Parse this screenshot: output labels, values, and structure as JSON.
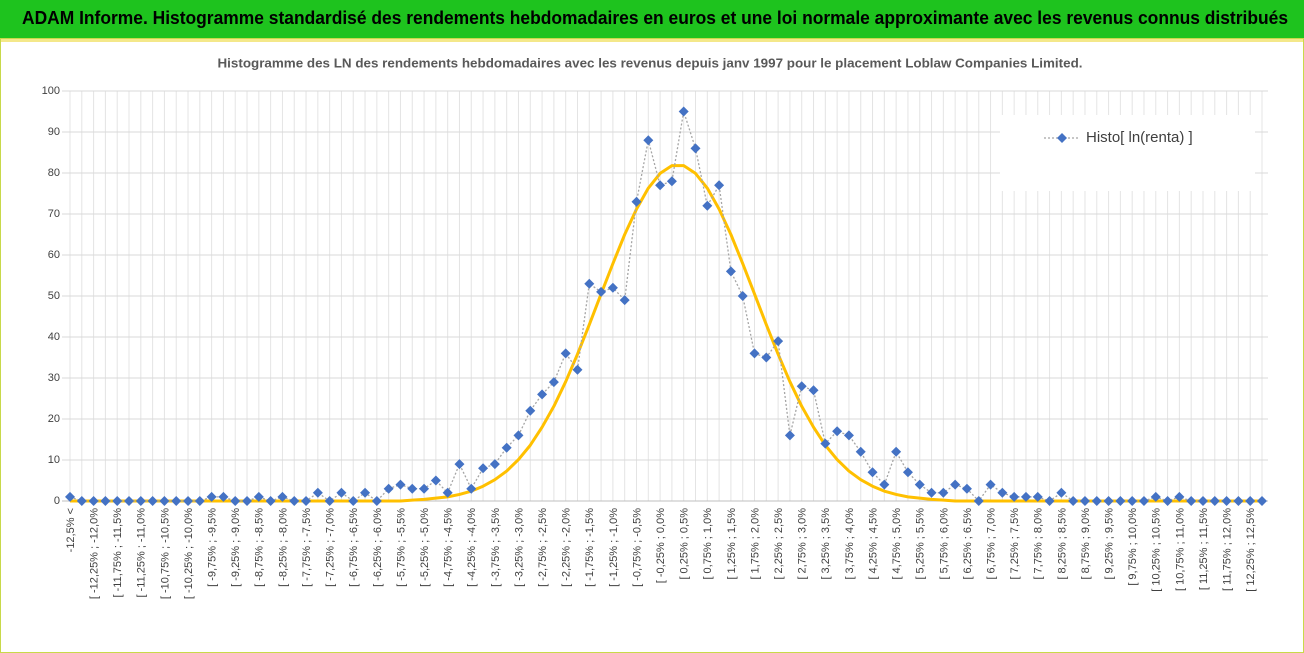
{
  "chart_data": {
    "type": "line",
    "header": "ADAM Informe. Histogramme standardisé des rendements hebdomadaires en euros et une loi normale approximante avec les revenus connus distribués",
    "title": "Histogramme des LN des rendements hebdomadaires avec les revenus depuis janv 1997 pour le placement Loblaw Companies Limited.",
    "categories": [
      "-12,5% <",
      null,
      "[ -12,25% ; -12,0%",
      null,
      "[ -11,75% ; -11,5%",
      null,
      "[ -11,25% ; -11,0%",
      null,
      "[ -10,75% ; -10,5%",
      null,
      "[ -10,25% ; -10,0%",
      null,
      "[ -9,75% ; -9,5%",
      null,
      "[ -9,25% ; -9,0%",
      null,
      "[ -8,75% ; -8,5%",
      null,
      "[ -8,25% ; -8,0%",
      null,
      "[ -7,75% ; -7,5%",
      null,
      "[ -7,25% ; -7,0%",
      null,
      "[ -6,75% ; -6,5%",
      null,
      "[ -6,25% ; -6,0%",
      null,
      "[ -5,75% ; -5,5%",
      null,
      "[ -5,25% ; -5,0%",
      null,
      "[ -4,75% ; -4,5%",
      null,
      "[ -4,25% ; -4,0%",
      null,
      "[ -3,75% ; -3,5%",
      null,
      "[ -3,25% ; -3,0%",
      null,
      "[ -2,75% ; -2,5%",
      null,
      "[ -2,25% ; -2,0%",
      null,
      "[ -1,75% ; -1,5%",
      null,
      "[ -1,25% ; -1,0%",
      null,
      "[ -0,75% ; -0,5%",
      null,
      "[ -0,25% ; 0,0%",
      null,
      "[ 0,25% ; 0,5%",
      null,
      "[ 0,75% ; 1,0%",
      null,
      "[ 1,25% ; 1,5%",
      null,
      "[ 1,75% ; 2,0%",
      null,
      "[ 2,25% ; 2,5%",
      null,
      "[ 2,75% ; 3,0%",
      null,
      "[ 3,25% ; 3,5%",
      null,
      "[ 3,75% ; 4,0%",
      null,
      "[ 4,25% ; 4,5%",
      null,
      "[ 4,75% ; 5,0%",
      null,
      "[ 5,25% ; 5,5%",
      null,
      "[ 5,75% ; 6,0%",
      null,
      "[ 6,25% ; 6,5%",
      null,
      "[ 6,75% ; 7,0%",
      null,
      "[ 7,25% ; 7,5%",
      null,
      "[ 7,75% ; 8,0%",
      null,
      "[ 8,25% ; 8,5%",
      null,
      "[ 8,75% ; 9,0%",
      null,
      "[ 9,25% ; 9,5%",
      null,
      "[ 9,75% ; 10,0%",
      null,
      "[ 10,25% ; 10,5%",
      null,
      "[ 10,75% ; 11,0%",
      null,
      "[ 11,25% ; 11,5%",
      null,
      "[ 11,75% ; 12,0%",
      null,
      "[ 12,25% ; 12,5%",
      null
    ],
    "series": [
      {
        "name": "Histo[ ln(renta) ]",
        "color": "#4472c4",
        "line_color": "#a5a5a5",
        "line_style": "dotted",
        "marker": "diamond",
        "values": [
          1,
          0,
          0,
          0,
          0,
          0,
          0,
          0,
          0,
          0,
          0,
          0,
          1,
          1,
          0,
          0,
          1,
          0,
          1,
          0,
          0,
          2,
          0,
          2,
          0,
          2,
          0,
          3,
          4,
          3,
          3,
          5,
          2,
          9,
          3,
          8,
          9,
          13,
          16,
          22,
          26,
          29,
          36,
          32,
          53,
          51,
          52,
          49,
          73,
          88,
          77,
          78,
          95,
          86,
          72,
          77,
          56,
          50,
          36,
          35,
          39,
          16,
          28,
          27,
          14,
          17,
          16,
          12,
          7,
          4,
          12,
          7,
          4,
          2,
          2,
          4,
          3,
          0,
          4,
          2,
          1,
          1,
          1,
          0,
          2,
          0,
          0,
          0,
          0,
          0,
          0,
          0,
          1,
          0,
          1,
          0,
          0,
          0,
          0,
          0,
          0,
          0
        ]
      },
      {
        "color": "#ffc000",
        "line_style": "solid",
        "marker": "none",
        "values": [
          0,
          0,
          0,
          0,
          0,
          0,
          0,
          0,
          0,
          0,
          0,
          0,
          0,
          0,
          0,
          0,
          0,
          0,
          0,
          0,
          0,
          0,
          0,
          0,
          0,
          0,
          0,
          0,
          0,
          0.2,
          0.4,
          0.7,
          1.0,
          1.6,
          2.4,
          3.6,
          5.2,
          7.3,
          10.1,
          13.6,
          18.0,
          23.1,
          29.1,
          35.8,
          43.0,
          50.5,
          57.9,
          65.0,
          71.2,
          76.3,
          79.9,
          81.8,
          81.8,
          79.9,
          76.3,
          71.2,
          65.0,
          57.9,
          50.5,
          43.0,
          35.8,
          29.1,
          23.1,
          18.0,
          13.6,
          10.1,
          7.3,
          5.2,
          3.6,
          2.4,
          1.6,
          1.0,
          0.7,
          0.4,
          0.2,
          0,
          0,
          0,
          0,
          0,
          0,
          0,
          0,
          0,
          0,
          0,
          0,
          0,
          0,
          0,
          0,
          0,
          0,
          0,
          0,
          0,
          0,
          0,
          0,
          0,
          0,
          0
        ]
      }
    ],
    "ylim": [
      0,
      100
    ],
    "yticks": [
      0,
      10,
      20,
      30,
      40,
      50,
      60,
      70,
      80,
      90,
      100
    ],
    "grid": true,
    "legend": "upper right"
  }
}
